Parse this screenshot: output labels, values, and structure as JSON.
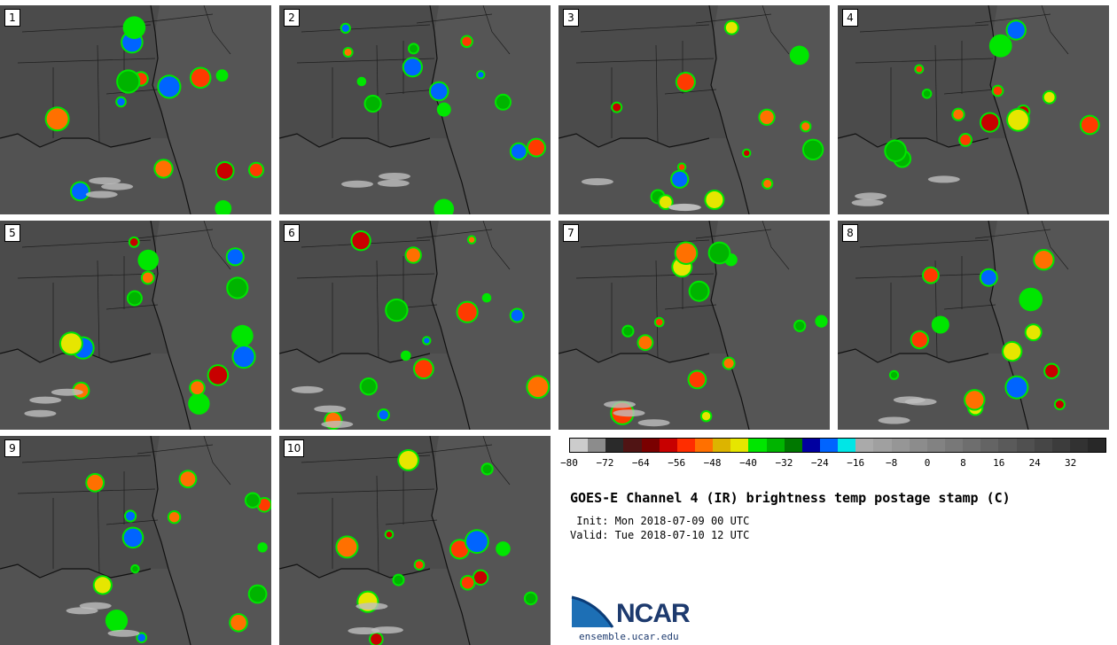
{
  "panels": [
    {
      "label": "1"
    },
    {
      "label": "2"
    },
    {
      "label": "3"
    },
    {
      "label": "4"
    },
    {
      "label": "5"
    },
    {
      "label": "6"
    },
    {
      "label": "7"
    },
    {
      "label": "8"
    },
    {
      "label": "9"
    },
    {
      "label": "10"
    }
  ],
  "colorbar": {
    "colors": [
      "#cccccc",
      "#8c8c8c",
      "#2a2a2a",
      "#501414",
      "#7a0000",
      "#c80000",
      "#ff2d00",
      "#ff7000",
      "#dcb400",
      "#e6e600",
      "#00e600",
      "#00b400",
      "#007800",
      "#0000a0",
      "#0064ff",
      "#00e6e6",
      "#aaaaaa",
      "#a0a0a0",
      "#969696",
      "#8c8c8c",
      "#828282",
      "#787878",
      "#6e6e6e",
      "#646464",
      "#5a5a5a",
      "#505050",
      "#464646",
      "#3c3c3c",
      "#323232",
      "#282828"
    ],
    "tick_labels": [
      "−80",
      "−72",
      "−64",
      "−56",
      "−48",
      "−40",
      "−32",
      "−24",
      "−16",
      "−8",
      "0",
      "8",
      "16",
      "24",
      "32"
    ]
  },
  "title": "GOES-E Channel 4 (IR) brightness temp postage stamp (C)",
  "init": " Init: Mon 2018-07-09 00 UTC",
  "valid": "Valid: Tue 2018-07-10 12 UTC",
  "logo": {
    "text": "NCAR",
    "url": "ensemble.ucar.edu",
    "color": "#1d6fb5"
  }
}
